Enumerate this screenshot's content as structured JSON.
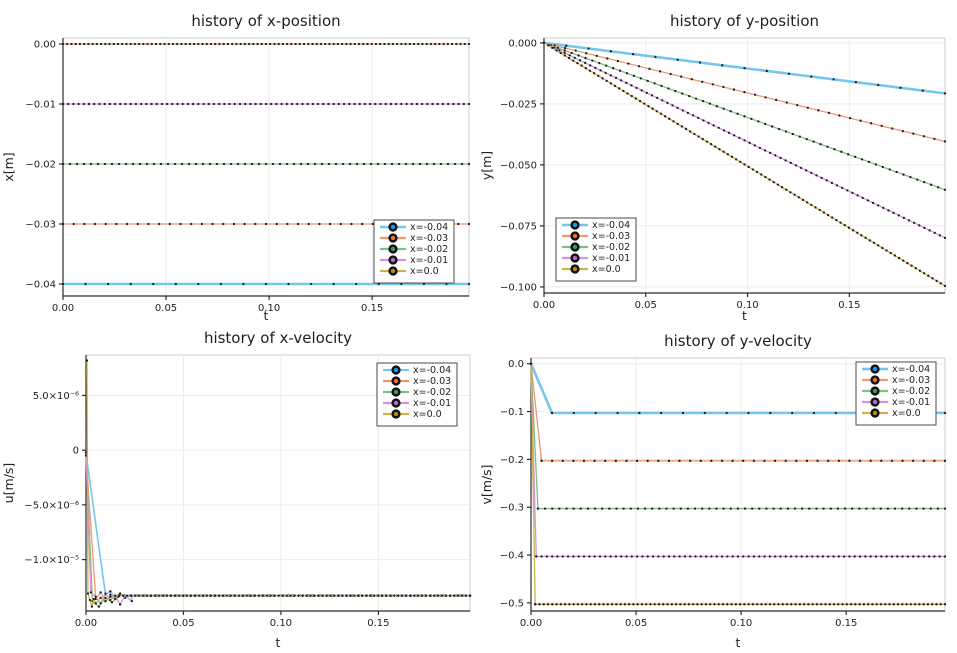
{
  "figure": {
    "background": "#ffffff",
    "text_color": "#1f1f1f",
    "grid_color": "#ececec",
    "frame_color": "#cccccc",
    "spine_color": "#2b2b2b",
    "marker_dot_color": "#1c1c1c",
    "legend_border_color": "#4a4a4a",
    "legend_background": "#ffffff"
  },
  "chart_data": [
    {
      "type": "line",
      "title": "history of x-position",
      "xlabel": "t",
      "ylabel": "x[m]",
      "xlim": [
        0,
        0.197
      ],
      "ylim": [
        -0.042,
        0.001
      ],
      "grid": true,
      "legend_pos": "bottom-right",
      "xticks": {
        "values": [
          0.0,
          0.05,
          0.1,
          0.15
        ],
        "labels": [
          "0.00",
          "0.05",
          "0.10",
          "0.15"
        ]
      },
      "yticks": {
        "values": [
          0.0,
          -0.01,
          -0.02,
          -0.03,
          -0.04
        ],
        "labels": [
          "0.00",
          "−0.01",
          "−0.02",
          "−0.03",
          "−0.04"
        ]
      },
      "series": [
        {
          "label": "x=-0.04",
          "line_color": "#74c6f0",
          "accent_color": "#119df5",
          "line_width": 2.6,
          "segments": [
            {
              "x0": 0,
              "y0": -0.04,
              "x1": 0.197,
              "y1": -0.04,
              "n": 19
            }
          ]
        },
        {
          "label": "x=-0.03",
          "line_color": "#f0976f",
          "accent_color": "#e8703f",
          "line_width": 1.3,
          "segments": [
            {
              "x0": 0,
              "y0": -0.03,
              "x1": 0.197,
              "y1": -0.03,
              "n": 39
            }
          ]
        },
        {
          "label": "x=-0.02",
          "line_color": "#7cc281",
          "accent_color": "#36a14c",
          "line_width": 1.3,
          "segments": [
            {
              "x0": 0,
              "y0": -0.02,
              "x1": 0.197,
              "y1": -0.02,
              "n": 59
            }
          ]
        },
        {
          "label": "x=-0.01",
          "line_color": "#d295dd",
          "accent_color": "#c45fd6",
          "line_width": 1.3,
          "segments": [
            {
              "x0": 0,
              "y0": -0.01,
              "x1": 0.197,
              "y1": -0.01,
              "n": 79
            }
          ]
        },
        {
          "label": "x=0.0",
          "line_color": "#d1b04a",
          "accent_color": "#ad8d17",
          "line_width": 1.3,
          "segments": [
            {
              "x0": 0,
              "y0": 0.0,
              "x1": 0.197,
              "y1": 0.0,
              "n": 97
            }
          ]
        }
      ]
    },
    {
      "type": "line",
      "title": "history of y-position",
      "xlabel": "t",
      "ylabel": "y[m]",
      "xlim": [
        0,
        0.197
      ],
      "ylim": [
        -0.1025,
        0.002
      ],
      "grid": true,
      "legend_pos": "bottom-left",
      "xticks": {
        "values": [
          0.0,
          0.05,
          0.1,
          0.15
        ],
        "labels": [
          "0.00",
          "0.05",
          "0.10",
          "0.15"
        ]
      },
      "yticks": {
        "values": [
          0.0,
          -0.025,
          -0.05,
          -0.075,
          -0.1
        ],
        "labels": [
          "0.000",
          "−0.025",
          "−0.050",
          "−0.075",
          "−0.100"
        ]
      },
      "series": [
        {
          "label": "x=-0.04",
          "line_color": "#74c6f0",
          "accent_color": "#119df5",
          "line_width": 2.6,
          "segments": [
            {
              "x0": 0,
              "y0": 0,
              "x1": 0.197,
              "y1": -0.0207,
              "n": 19
            }
          ]
        },
        {
          "label": "x=-0.03",
          "line_color": "#f0976f",
          "accent_color": "#e8703f",
          "line_width": 1.3,
          "segments": [
            {
              "x0": 0,
              "y0": 0,
              "x1": 0.197,
              "y1": -0.0404,
              "n": 39
            }
          ]
        },
        {
          "label": "x=-0.02",
          "line_color": "#7cc281",
          "accent_color": "#36a14c",
          "line_width": 1.3,
          "segments": [
            {
              "x0": 0,
              "y0": 0,
              "x1": 0.197,
              "y1": -0.0602,
              "n": 59
            }
          ]
        },
        {
          "label": "x=-0.01",
          "line_color": "#d295dd",
          "accent_color": "#c45fd6",
          "line_width": 1.3,
          "segments": [
            {
              "x0": 0,
              "y0": 0,
              "x1": 0.197,
              "y1": -0.0799,
              "n": 79
            }
          ]
        },
        {
          "label": "x=0.0",
          "line_color": "#d1b04a",
          "accent_color": "#ad8d17",
          "line_width": 1.3,
          "segments": [
            {
              "x0": 0,
              "y0": 0,
              "x1": 0.197,
              "y1": -0.0996,
              "n": 97
            }
          ]
        }
      ]
    },
    {
      "type": "line",
      "title": "history of x-velocity",
      "xlabel": "t",
      "ylabel": "u[m/s]",
      "xlim": [
        0,
        0.197
      ],
      "ylim": [
        -1.47e-05,
        8.7e-06
      ],
      "grid": true,
      "legend_pos": "top-right",
      "xticks": {
        "values": [
          0.0,
          0.05,
          0.1,
          0.15
        ],
        "labels": [
          "0.00",
          "0.05",
          "0.10",
          "0.15"
        ]
      },
      "yticks": {
        "values": [
          5e-06,
          0,
          -5e-06,
          -1e-05
        ],
        "labels": [
          "5.0×10⁻⁶",
          "0",
          "−5.0×10⁻⁶",
          "−1.0×10⁻⁵"
        ]
      },
      "series": [
        {
          "label": "x=-0.04",
          "line_color": "#74c6f0",
          "accent_color": "#119df5",
          "line_width": 1.6,
          "points": [
            [
              0,
              -3e-07
            ],
            [
              0.01,
              -1.32e-05
            ],
            [
              0.0125,
              -1.29e-05
            ],
            [
              0.015,
              -1.36e-05
            ],
            [
              0.0175,
              -1.31e-05
            ],
            [
              0.02,
              -1.35e-05
            ],
            [
              0.0225,
              -1.33e-05
            ]
          ],
          "segments": [
            {
              "x0": 0.0225,
              "y0": -1.33e-05,
              "x1": 0.197,
              "y1": -1.33e-05,
              "n": 18
            }
          ]
        },
        {
          "label": "x=-0.03",
          "line_color": "#f0976f",
          "accent_color": "#e8703f",
          "line_width": 1.3,
          "points": [
            [
              0,
              -4e-07
            ],
            [
              0.005,
              -1.36e-05
            ],
            [
              0.0075,
              -1.3e-05
            ],
            [
              0.01,
              -1.38e-05
            ],
            [
              0.0125,
              -1.32e-05
            ],
            [
              0.015,
              -1.35e-05
            ],
            [
              0.0175,
              -1.31e-05
            ],
            [
              0.02,
              -1.34e-05
            ]
          ],
          "segments": [
            {
              "x0": 0.02,
              "y0": -1.33e-05,
              "x1": 0.197,
              "y1": -1.33e-05,
              "n": 36
            }
          ]
        },
        {
          "label": "x=-0.02",
          "line_color": "#7cc281",
          "accent_color": "#36a14c",
          "line_width": 1.3,
          "points": [
            [
              0,
              -2e-07
            ],
            [
              0.0033,
              -1.38e-05
            ],
            [
              0.0066,
              -1.43e-05
            ],
            [
              0.01,
              -1.35e-05
            ],
            [
              0.0133,
              -1.39e-05
            ],
            [
              0.0166,
              -1.34e-05
            ]
          ],
          "segments": [
            {
              "x0": 0.0166,
              "y0": -1.33e-05,
              "x1": 0.197,
              "y1": -1.33e-05,
              "n": 55
            }
          ]
        },
        {
          "label": "x=-0.01",
          "line_color": "#d295dd",
          "accent_color": "#c45fd6",
          "line_width": 1.3,
          "points": [
            [
              0,
              -5e-07
            ],
            [
              0.0025,
              -1.3e-05
            ],
            [
              0.005,
              -1.34e-05
            ],
            [
              0.0075,
              -1.4e-05
            ],
            [
              0.01,
              -1.31e-05
            ],
            [
              0.0125,
              -1.37e-05
            ],
            [
              0.015,
              -1.33e-05
            ],
            [
              0.0175,
              -1.41e-05
            ],
            [
              0.02,
              -1.33e-05
            ],
            [
              0.0235,
              -1.38e-05
            ]
          ],
          "segments": [
            {
              "x0": 0.0235,
              "y0": -1.33e-05,
              "x1": 0.197,
              "y1": -1.33e-05,
              "n": 70
            }
          ]
        },
        {
          "label": "x=0.0",
          "line_color": "#d1b04a",
          "accent_color": "#ad8d17",
          "line_width": 1.3,
          "points": [
            [
              0.0005,
              8.2e-06
            ],
            [
              0.001,
              -1.31e-05
            ],
            [
              0.002,
              -1.37e-05
            ],
            [
              0.003,
              -1.43e-05
            ],
            [
              0.004,
              -1.36e-05
            ],
            [
              0.005,
              -1.4e-05
            ],
            [
              0.0075,
              -1.35e-05
            ],
            [
              0.01,
              -1.38e-05
            ],
            [
              0.0125,
              -1.34e-05
            ],
            [
              0.015,
              -1.36e-05
            ]
          ],
          "segments": [
            {
              "x0": 0.015,
              "y0": -1.33e-05,
              "x1": 0.197,
              "y1": -1.33e-05,
              "n": 90
            }
          ]
        }
      ]
    },
    {
      "type": "line",
      "title": "history of y-velocity",
      "xlabel": "t",
      "ylabel": "v[m/s]",
      "xlim": [
        0,
        0.197
      ],
      "ylim": [
        -0.517,
        0.012
      ],
      "grid": true,
      "legend_pos": "top-right",
      "xticks": {
        "values": [
          0.0,
          0.05,
          0.1,
          0.15
        ],
        "labels": [
          "0.00",
          "0.05",
          "0.10",
          "0.15"
        ]
      },
      "yticks": {
        "values": [
          0.0,
          -0.1,
          -0.2,
          -0.3,
          -0.4,
          -0.5
        ],
        "labels": [
          "0.0",
          "−0.1",
          "−0.2",
          "−0.3",
          "−0.4",
          "−0.5"
        ]
      },
      "series": [
        {
          "label": "x=-0.04",
          "line_color": "#74c6f0",
          "accent_color": "#119df5",
          "line_width": 2.6,
          "points": [
            [
              0,
              0
            ],
            [
              0.01,
              -0.103
            ]
          ],
          "segments": [
            {
              "x0": 0.01,
              "y0": -0.103,
              "x1": 0.197,
              "y1": -0.103,
              "n": 19
            }
          ]
        },
        {
          "label": "x=-0.03",
          "line_color": "#f0976f",
          "accent_color": "#e8703f",
          "line_width": 1.3,
          "points": [
            [
              0,
              0
            ],
            [
              0.005,
              -0.203
            ]
          ],
          "segments": [
            {
              "x0": 0.005,
              "y0": -0.203,
              "x1": 0.197,
              "y1": -0.203,
              "n": 39
            }
          ]
        },
        {
          "label": "x=-0.02",
          "line_color": "#7cc281",
          "accent_color": "#36a14c",
          "line_width": 1.3,
          "points": [
            [
              0,
              0
            ],
            [
              0.0033,
              -0.303
            ]
          ],
          "segments": [
            {
              "x0": 0.0033,
              "y0": -0.303,
              "x1": 0.197,
              "y1": -0.303,
              "n": 58
            }
          ]
        },
        {
          "label": "x=-0.01",
          "line_color": "#d295dd",
          "accent_color": "#c45fd6",
          "line_width": 1.3,
          "points": [
            [
              0,
              0
            ],
            [
              0.0025,
              -0.403
            ]
          ],
          "segments": [
            {
              "x0": 0.0025,
              "y0": -0.403,
              "x1": 0.197,
              "y1": -0.403,
              "n": 78
            }
          ]
        },
        {
          "label": "x=0.0",
          "line_color": "#d1b04a",
          "accent_color": "#ad8d17",
          "line_width": 1.3,
          "points": [
            [
              0,
              0
            ],
            [
              0.002,
              -0.503
            ]
          ],
          "segments": [
            {
              "x0": 0.002,
              "y0": -0.503,
              "x1": 0.197,
              "y1": -0.503,
              "n": 97
            }
          ]
        }
      ]
    }
  ]
}
